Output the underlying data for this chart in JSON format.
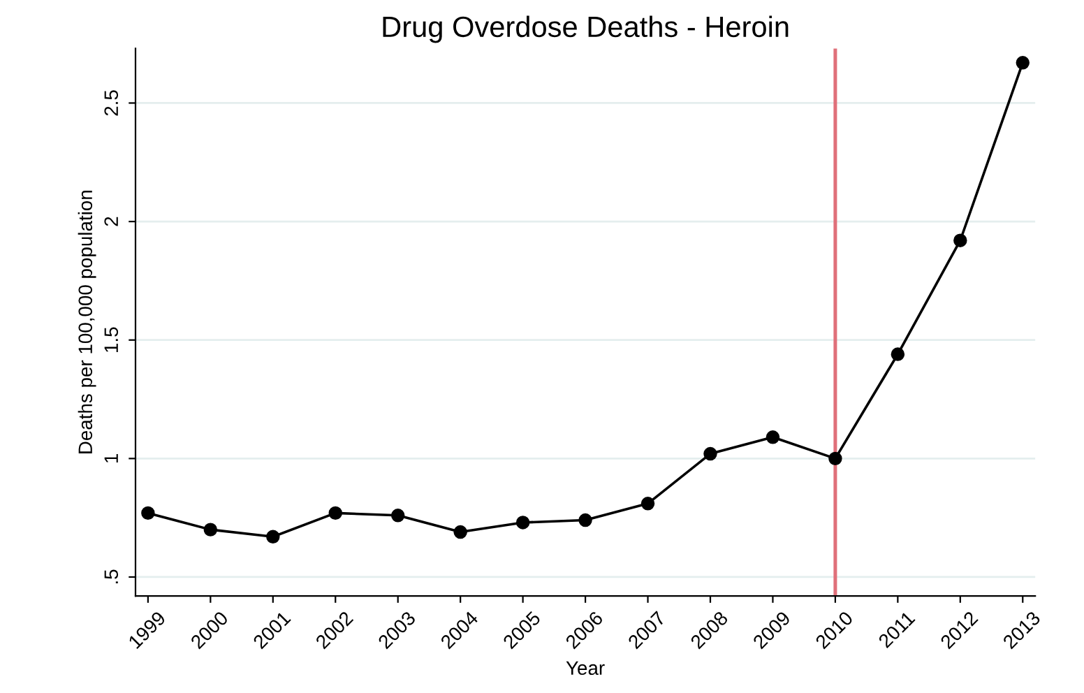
{
  "chart_data": {
    "type": "line",
    "title": "Drug Overdose Deaths - Heroin",
    "xlabel": "Year",
    "ylabel": "Deaths per 100,000 population",
    "x": [
      1999,
      2000,
      2001,
      2002,
      2003,
      2004,
      2005,
      2006,
      2007,
      2008,
      2009,
      2010,
      2011,
      2012,
      2013
    ],
    "series": [
      {
        "color": "#000000",
        "values": [
          0.77,
          0.7,
          0.67,
          0.77,
          0.76,
          0.69,
          0.73,
          0.74,
          0.81,
          1.02,
          1.09,
          1.0,
          1.44,
          1.92,
          2.67
        ]
      }
    ],
    "xlim": [
      1998.8,
      2013.2
    ],
    "xticks": [
      1999,
      2000,
      2001,
      2002,
      2003,
      2004,
      2005,
      2006,
      2007,
      2008,
      2009,
      2010,
      2011,
      2012,
      2013
    ],
    "ylim": [
      0.42,
      2.73
    ],
    "yticks": [
      {
        "value": 0.5,
        "label": ".5"
      },
      1,
      1.5,
      2,
      2.5
    ],
    "ref_lines": [
      {
        "axis": "x",
        "value": 2010,
        "color": "#e0707a"
      }
    ],
    "grid": "y",
    "marker": "circle",
    "line_style": "solid"
  }
}
